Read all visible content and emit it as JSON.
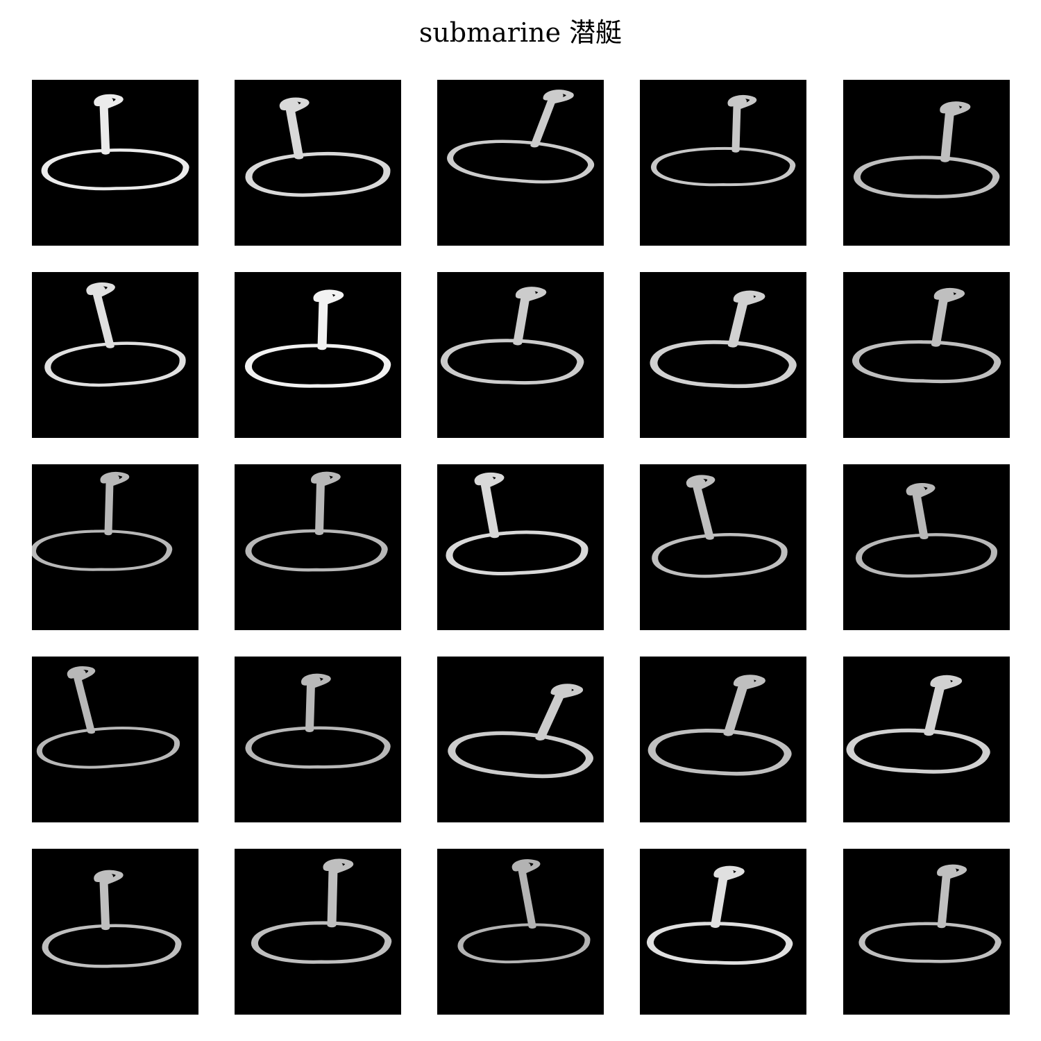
{
  "figure": {
    "title": "submarine 潜艇",
    "colors": {
      "background": "#ffffff",
      "tile_background": "#000000",
      "stroke": "#ffffff"
    },
    "grid": {
      "rows": 5,
      "cols": 5
    },
    "sketch_subject": "submarine",
    "sketch_icon": "submarine-doodle-icon",
    "tile_count": 25
  }
}
